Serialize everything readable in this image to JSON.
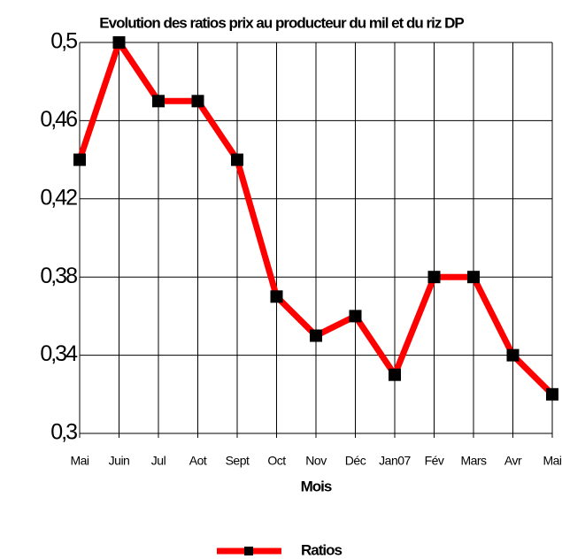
{
  "chart_data": {
    "type": "line",
    "title": "Evolution des ratios prix au producteur du mil et du riz DP",
    "x_label": "Mois",
    "categories": [
      "Mai",
      "Juin",
      "Jul",
      "Aot",
      "Sept",
      "Oct",
      "Nov",
      "Déc",
      "Jan07",
      "Fév",
      "Mars",
      "Avr",
      "Mai"
    ],
    "series": [
      {
        "name": "Ratios",
        "color": "#ff0000",
        "marker_color": "#000000",
        "values": [
          0.44,
          0.5,
          0.47,
          0.47,
          0.44,
          0.37,
          0.35,
          0.36,
          0.33,
          0.38,
          0.38,
          0.34,
          0.32
        ]
      }
    ],
    "ylim": [
      0.3,
      0.5
    ],
    "yticks": [
      {
        "value": 0.3,
        "label": "0,3"
      },
      {
        "value": 0.34,
        "label": "0,34"
      },
      {
        "value": 0.38,
        "label": "0,38"
      },
      {
        "value": 0.42,
        "label": "0,42"
      },
      {
        "value": 0.46,
        "label": "0,46"
      },
      {
        "value": 0.5,
        "label": "0,5"
      }
    ],
    "grid": true,
    "legend": "bottom"
  }
}
